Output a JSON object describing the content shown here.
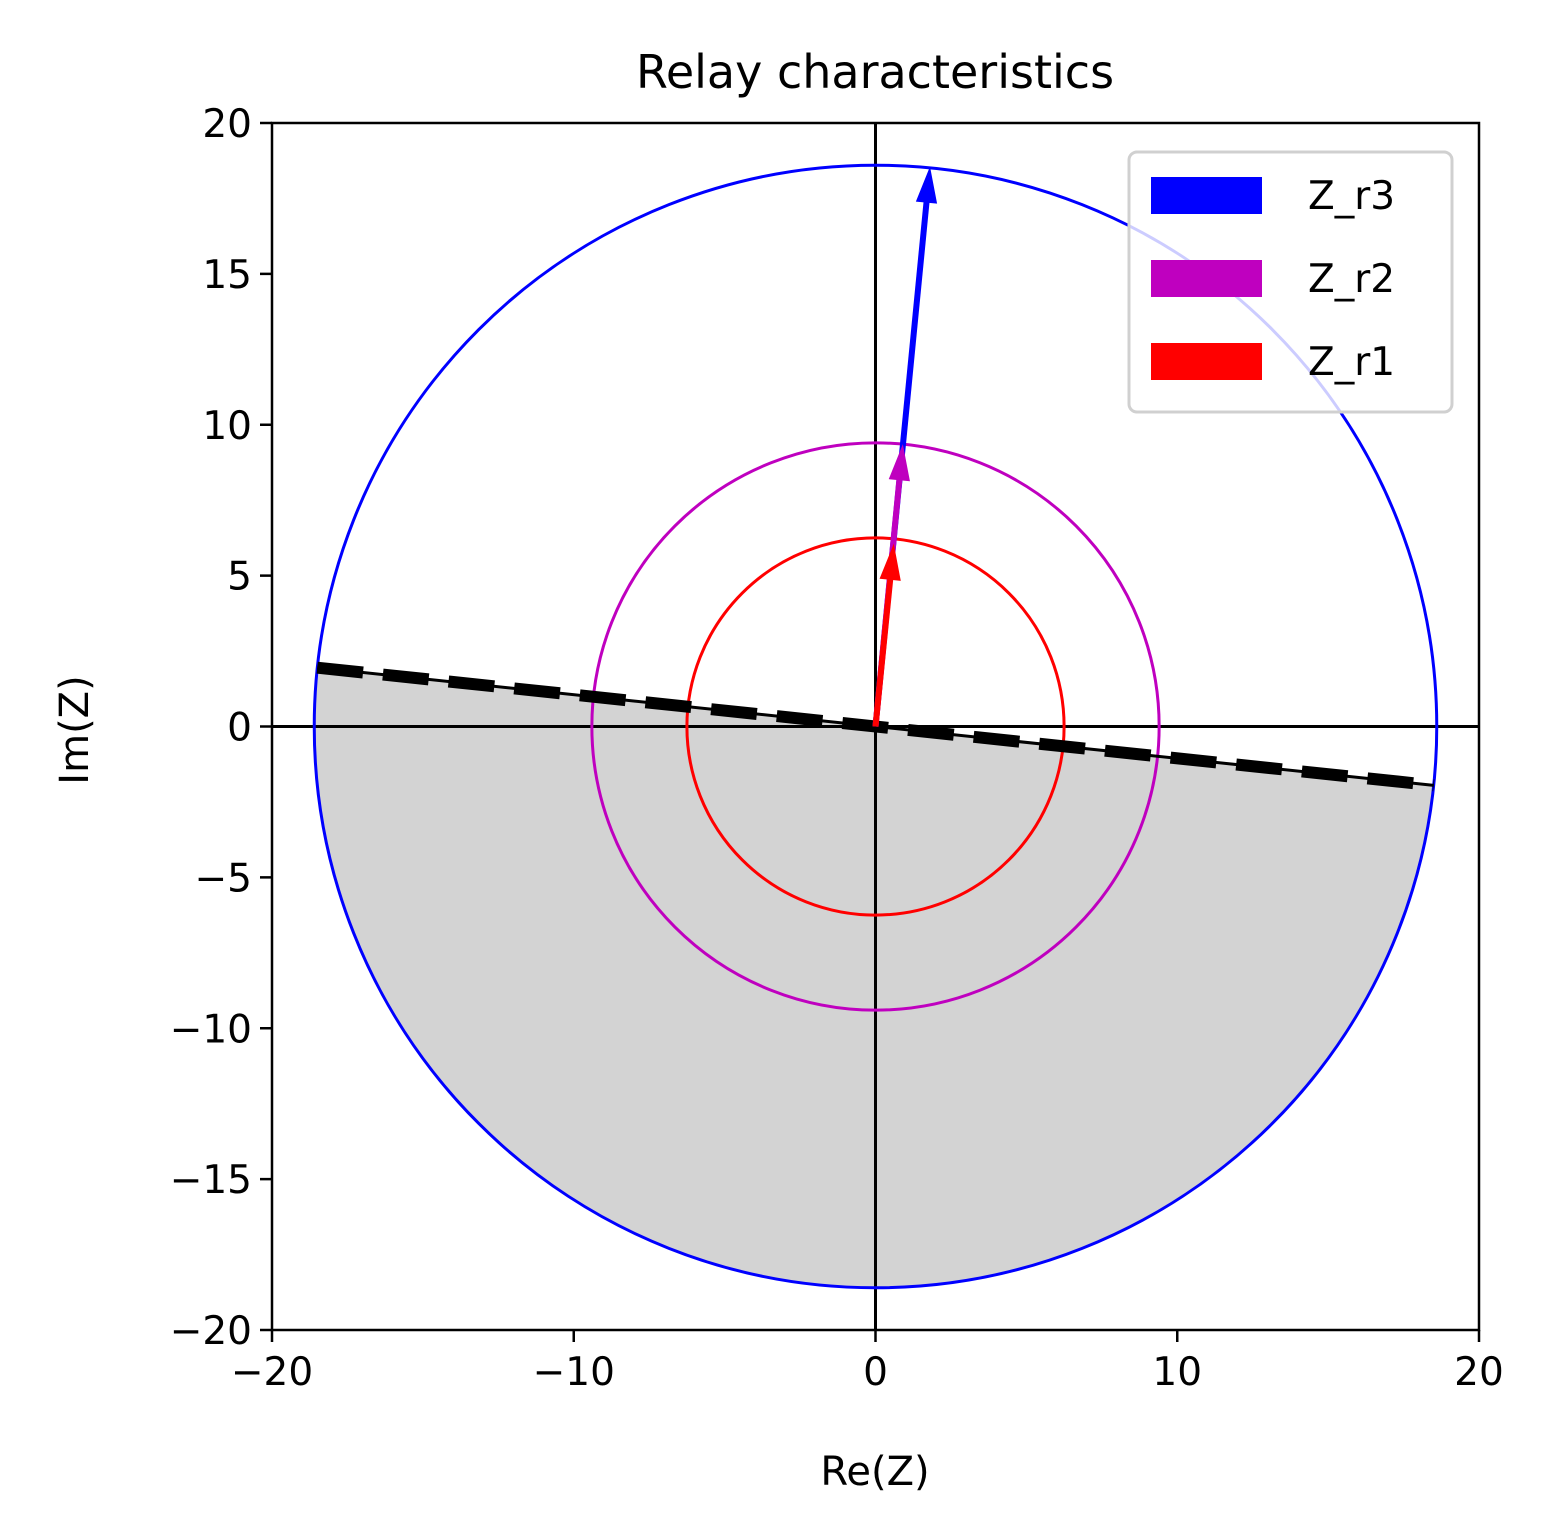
{
  "chart_data": {
    "type": "scatter",
    "title": "Relay characteristics",
    "xlabel": "Re(Z)",
    "ylabel": "Im(Z)",
    "xlim": [
      -20,
      20
    ],
    "ylim": [
      -20,
      20
    ],
    "xticks": [
      -20,
      -10,
      0,
      10,
      20
    ],
    "yticks": [
      -20,
      -15,
      -10,
      -5,
      0,
      5,
      10,
      15,
      20
    ],
    "tick_labels_x": [
      "−20",
      "−10",
      "0",
      "10",
      "20"
    ],
    "tick_labels_y": [
      "−20",
      "−15",
      "−10",
      "−5",
      "0",
      "5",
      "10",
      "15",
      "20"
    ],
    "grid": false,
    "legend": "top-right",
    "series": [
      {
        "name": "Z_r3",
        "color": "#0000ff",
        "radius": 18.6,
        "vector": [
          1.8,
          18.5
        ]
      },
      {
        "name": "Z_r2",
        "color": "#bf00bf",
        "radius": 9.4,
        "vector": [
          0.9,
          9.3
        ]
      },
      {
        "name": "Z_r1",
        "color": "#ff0000",
        "radius": 6.25,
        "vector": [
          0.6,
          6.0
        ]
      }
    ],
    "directional_line": {
      "points": [
        [
          -18.5,
          1.95
        ],
        [
          18.5,
          -1.95
        ]
      ],
      "style": "dashed",
      "color": "#000000"
    },
    "shaded_region": {
      "description_color": "#d3d3d3",
      "bounded_by_radius": 18.6
    }
  }
}
